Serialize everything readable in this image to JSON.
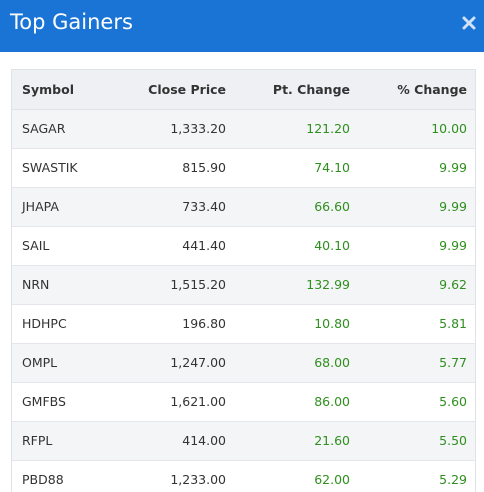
{
  "header": {
    "title": "Top Gainers",
    "close_icon": "close-icon"
  },
  "colors": {
    "header_bg": "#1a74d6",
    "gain_text": "#2f8f1e",
    "row_odd_bg": "#f4f5f7",
    "table_header_bg": "#eef0f4"
  },
  "table": {
    "columns": [
      "Symbol",
      "Close Price",
      "Pt. Change",
      "% Change"
    ],
    "rows": [
      {
        "symbol": "SAGAR",
        "close": "1,333.20",
        "pt": "121.20",
        "pct": "10.00"
      },
      {
        "symbol": "SWASTIK",
        "close": "815.90",
        "pt": "74.10",
        "pct": "9.99"
      },
      {
        "symbol": "JHAPA",
        "close": "733.40",
        "pt": "66.60",
        "pct": "9.99"
      },
      {
        "symbol": "SAIL",
        "close": "441.40",
        "pt": "40.10",
        "pct": "9.99"
      },
      {
        "symbol": "NRN",
        "close": "1,515.20",
        "pt": "132.99",
        "pct": "9.62"
      },
      {
        "symbol": "HDHPC",
        "close": "196.80",
        "pt": "10.80",
        "pct": "5.81"
      },
      {
        "symbol": "OMPL",
        "close": "1,247.00",
        "pt": "68.00",
        "pct": "5.77"
      },
      {
        "symbol": "GMFBS",
        "close": "1,621.00",
        "pt": "86.00",
        "pct": "5.60"
      },
      {
        "symbol": "RFPL",
        "close": "414.00",
        "pt": "21.60",
        "pct": "5.50"
      },
      {
        "symbol": "PBD88",
        "close": "1,233.00",
        "pt": "62.00",
        "pct": "5.29"
      }
    ]
  }
}
